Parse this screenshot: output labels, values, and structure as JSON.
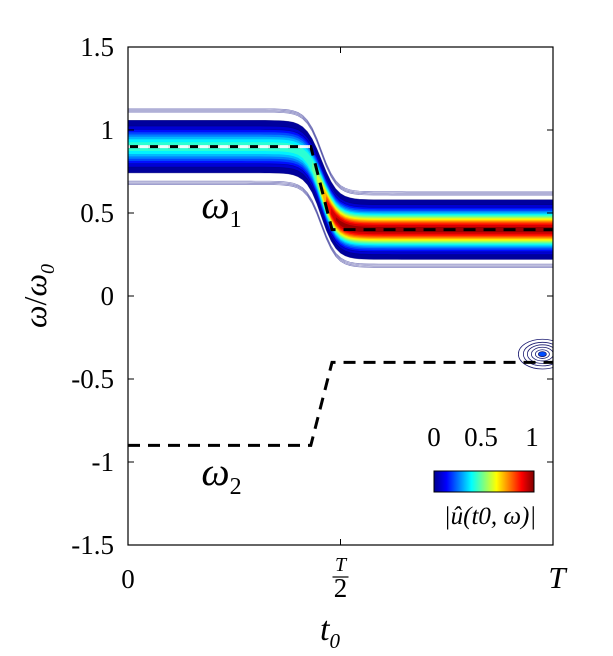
{
  "chart_data": {
    "type": "contour",
    "xlabel": {
      "main": "t",
      "sub": "0"
    },
    "ylabel": {
      "num": "ω",
      "den": "ω",
      "den_sub": "0"
    },
    "xlim": [
      0,
      1
    ],
    "ylim": [
      -1.5,
      1.5
    ],
    "x_ticks": [
      {
        "value": 0,
        "label": "0"
      },
      {
        "value": 0.5,
        "label_num": "T",
        "label_den": "2"
      },
      {
        "value": 1,
        "label": "T"
      }
    ],
    "y_ticks": [
      {
        "value": 1.5,
        "label": "1.5"
      },
      {
        "value": 1,
        "label": "1"
      },
      {
        "value": 0.5,
        "label": "0.5"
      },
      {
        "value": 0,
        "label": "0"
      },
      {
        "value": -0.5,
        "label": "-0.5"
      },
      {
        "value": -1,
        "label": "-1"
      },
      {
        "value": -1.5,
        "label": "-1.5"
      }
    ],
    "series": [
      {
        "name": "ω1",
        "style": "dashed",
        "points": [
          [
            0,
            0.9
          ],
          [
            0.43,
            0.9
          ],
          [
            0.48,
            0.4
          ],
          [
            1,
            0.4
          ]
        ]
      },
      {
        "name": "ω2",
        "style": "dashed",
        "points": [
          [
            0,
            -0.9
          ],
          [
            0.43,
            -0.9
          ],
          [
            0.48,
            -0.4
          ],
          [
            1,
            -0.4
          ]
        ]
      }
    ],
    "ridge": {
      "amplitude_left": 0.45,
      "amplitude_right": 1.0,
      "width": 0.19
    },
    "annotations": [
      {
        "main": "ω",
        "sub": "1",
        "x": 0.22,
        "y": 0.47
      },
      {
        "main": "ω",
        "sub": "2",
        "x": 0.22,
        "y": -1.14
      }
    ],
    "colorbar": {
      "colormap": "jet",
      "ticks": [
        "0",
        "0.5",
        "1"
      ],
      "label": "|û(t0, ω)|"
    },
    "grid": false,
    "colors": {
      "ridge_line_left": "#ffffff",
      "dashed": "#000000"
    }
  }
}
